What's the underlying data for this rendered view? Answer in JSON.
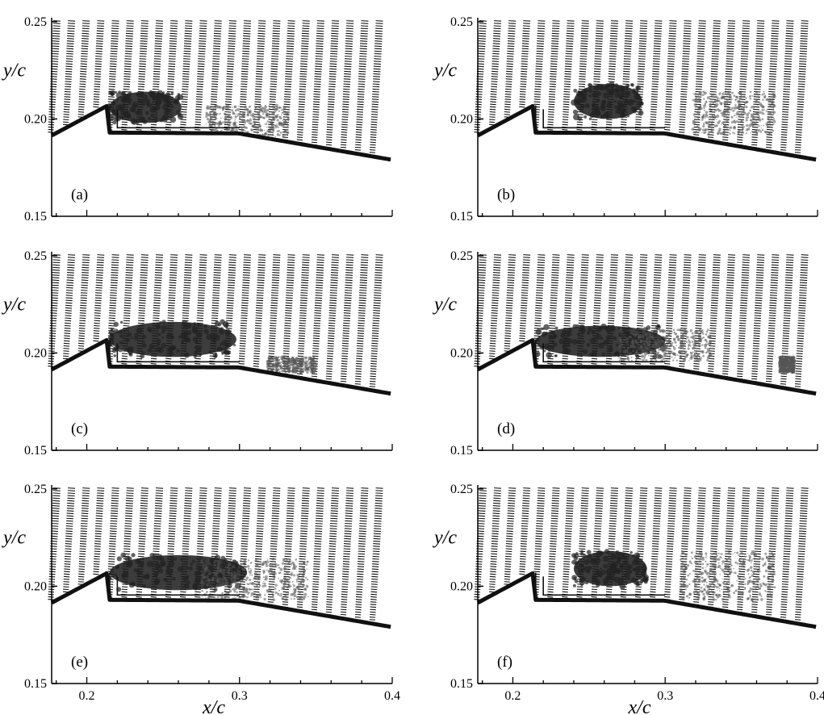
{
  "chart_data": {
    "type": "vector-field",
    "x": {
      "label": "x/c",
      "ticks": [
        "0.2",
        "0.3",
        "0.4"
      ],
      "tick_values": [
        0.2,
        0.3,
        0.4
      ],
      "range": [
        0.177,
        0.4
      ]
    },
    "y": {
      "label": "y/c",
      "ticks": [
        "0.25",
        "0.20",
        "0.15"
      ],
      "tick_values": [
        0.25,
        0.2,
        0.15
      ],
      "range": [
        0.15,
        0.252
      ]
    },
    "grid": false,
    "panels": [
      {
        "label": "(a)",
        "dense_regions": [
          {
            "x": [
              0.215,
              0.262
            ],
            "y": [
              0.198,
              0.214
            ]
          }
        ],
        "speckle_regions": [
          {
            "x": [
              0.278,
              0.332
            ],
            "y": [
              0.191,
              0.207
            ]
          }
        ]
      },
      {
        "label": "(b)",
        "dense_regions": [
          {
            "x": [
              0.24,
              0.285
            ],
            "y": [
              0.2,
              0.218
            ]
          }
        ],
        "speckle_regions": [
          {
            "x": [
              0.318,
              0.372
            ],
            "y": [
              0.192,
              0.214
            ]
          }
        ]
      },
      {
        "label": "(c)",
        "dense_regions": [
          {
            "x": [
              0.215,
              0.298
            ],
            "y": [
              0.198,
              0.216
            ]
          }
        ],
        "speckle_regions": [
          {
            "x": [
              0.318,
              0.35
            ],
            "y": [
              0.19,
              0.198
            ]
          }
        ]
      },
      {
        "label": "(d)",
        "dense_regions": [
          {
            "x": [
              0.215,
              0.3
            ],
            "y": [
              0.198,
              0.214
            ]
          }
        ],
        "speckle_regions": [
          {
            "x": [
              0.27,
              0.33
            ],
            "y": [
              0.196,
              0.212
            ]
          },
          {
            "x": [
              0.375,
              0.385
            ],
            "y": [
              0.19,
              0.198
            ]
          }
        ]
      },
      {
        "label": "(e)",
        "dense_regions": [
          {
            "x": [
              0.215,
              0.305
            ],
            "y": [
              0.198,
              0.216
            ]
          }
        ],
        "speckle_regions": [
          {
            "x": [
              0.275,
              0.345
            ],
            "y": [
              0.193,
              0.214
            ]
          }
        ]
      },
      {
        "label": "(f)",
        "dense_regions": [
          {
            "x": [
              0.24,
              0.288
            ],
            "y": [
              0.2,
              0.218
            ]
          }
        ],
        "speckle_regions": [
          {
            "x": [
              0.31,
              0.372
            ],
            "y": [
              0.193,
              0.218
            ]
          }
        ]
      }
    ]
  }
}
